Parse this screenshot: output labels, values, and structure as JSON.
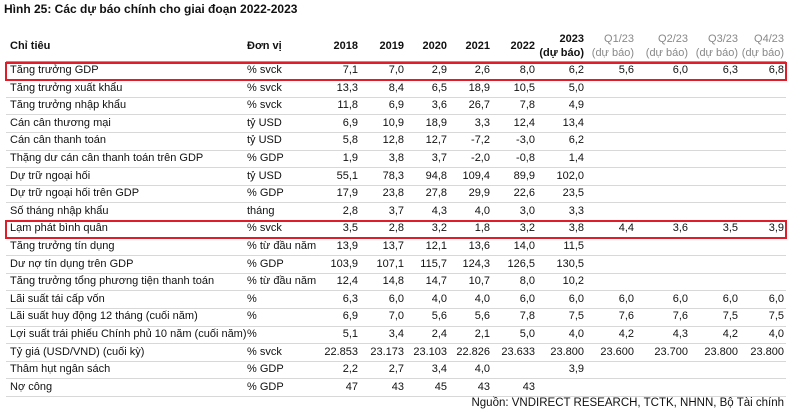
{
  "title": "Hình 25: Các dự báo chính cho giai đoạn 2022-2023",
  "table": {
    "header": [
      [
        "Chỉ tiêu"
      ],
      [
        "Đơn vị"
      ],
      [
        "2018"
      ],
      [
        "2019"
      ],
      [
        "2020"
      ],
      [
        "2021"
      ],
      [
        "2022"
      ],
      [
        "2023",
        "(dự báo)"
      ],
      [
        "Q1/23",
        "(dự báo)"
      ],
      [
        "Q2/23",
        "(dự báo)"
      ],
      [
        "Q3/23",
        "(dự báo)"
      ],
      [
        "Q4/23",
        "(dự báo)"
      ]
    ],
    "highlighted_rows": [
      0,
      9
    ],
    "rows": [
      [
        "Tăng trưởng GDP",
        "% svck",
        "7,1",
        "7,0",
        "2,9",
        "2,6",
        "8,0",
        "6,2",
        "5,6",
        "6,0",
        "6,3",
        "6,8"
      ],
      [
        "Tăng trưởng xuất khẩu",
        "% svck",
        "13,3",
        "8,4",
        "6,5",
        "18,9",
        "10,5",
        "5,0",
        null,
        null,
        null,
        null
      ],
      [
        "Tăng trưởng nhập khẩu",
        "% svck",
        "11,8",
        "6,9",
        "3,6",
        "26,7",
        "7,8",
        "4,9",
        null,
        null,
        null,
        null
      ],
      [
        "Cán cân thương mại",
        "tỷ USD",
        "6,9",
        "10,9",
        "18,9",
        "3,3",
        "12,4",
        "13,4",
        null,
        null,
        null,
        null
      ],
      [
        "Cán cân thanh toán",
        "tỷ USD",
        "5,8",
        "12,8",
        "12,7",
        "-7,2",
        "-3,0",
        "6,2",
        null,
        null,
        null,
        null
      ],
      [
        "Thặng dư cán cân thanh toán trên GDP",
        "% GDP",
        "1,9",
        "3,8",
        "3,7",
        "-2,0",
        "-0,8",
        "1,4",
        null,
        null,
        null,
        null
      ],
      [
        "Dự trữ ngoại hối",
        "tỷ USD",
        "55,1",
        "78,3",
        "94,8",
        "109,4",
        "89,9",
        "102,0",
        null,
        null,
        null,
        null
      ],
      [
        "Dự trữ ngoại hối trên GDP",
        "% GDP",
        "17,9",
        "23,8",
        "27,8",
        "29,9",
        "22,6",
        "23,5",
        null,
        null,
        null,
        null
      ],
      [
        "Số tháng nhập khẩu",
        "tháng",
        "2,8",
        "3,7",
        "4,3",
        "4,0",
        "3,0",
        "3,3",
        null,
        null,
        null,
        null
      ],
      [
        "Lạm phát bình quân",
        "% svck",
        "3,5",
        "2,8",
        "3,2",
        "1,8",
        "3,2",
        "3,8",
        "4,4",
        "3,6",
        "3,5",
        "3,9"
      ],
      [
        "Tăng trưởng tín dụng",
        "% từ đầu năm",
        "13,9",
        "13,7",
        "12,1",
        "13,6",
        "14,0",
        "11,5",
        null,
        null,
        null,
        null
      ],
      [
        "Dư nợ tín dụng trên GDP",
        "% GDP",
        "103,9",
        "107,1",
        "115,7",
        "124,3",
        "126,5",
        "130,5",
        null,
        null,
        null,
        null
      ],
      [
        "Tăng trưởng tổng phương tiện thanh toán",
        "% từ đầu năm",
        "12,4",
        "14,8",
        "14,7",
        "10,7",
        "8,0",
        "10,2",
        null,
        null,
        null,
        null
      ],
      [
        "Lãi suất tái cấp vốn",
        "%",
        "6,3",
        "6,0",
        "4,0",
        "4,0",
        "6,0",
        "6,0",
        "6,0",
        "6,0",
        "6,0",
        "6,0"
      ],
      [
        "Lãi suất huy động 12 tháng (cuối năm)",
        "%",
        "6,9",
        "7,0",
        "5,6",
        "5,6",
        "7,8",
        "7,5",
        "7,6",
        "7,6",
        "7,5",
        "7,5"
      ],
      [
        "Lợi suất trái phiếu Chính phủ 10 năm (cuối năm)",
        "%",
        "5,1",
        "3,4",
        "2,4",
        "2,1",
        "5,0",
        "4,0",
        "4,2",
        "4,3",
        "4,2",
        "4,0"
      ],
      [
        "Tỷ giá (USD/VND) (cuối kỳ)",
        "% svck",
        "22.853",
        "23.173",
        "23.103",
        "22.826",
        "23.633",
        "23.800",
        "23.600",
        "23.700",
        "23.800",
        "23.800"
      ],
      [
        "Thâm hụt ngân sách",
        "% GDP",
        "2,2",
        "2,7",
        "3,4",
        "4,0",
        null,
        "3,9",
        null,
        null,
        null,
        null
      ],
      [
        "Nợ công",
        "% GDP",
        "47",
        "43",
        "45",
        "43",
        "43",
        null,
        null,
        null,
        null,
        null
      ]
    ]
  },
  "source": "Nguồn: VNDIRECT RESEARCH, TCTK, NHNN, Bộ Tài chính"
}
